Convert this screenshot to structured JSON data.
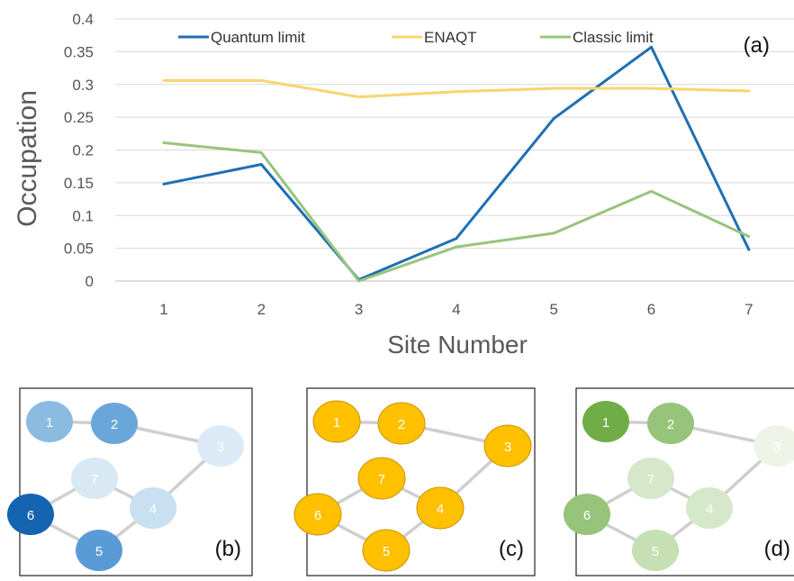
{
  "chart_data": {
    "type": "line",
    "ylabel": "Occupation",
    "xlabel": "Site Number",
    "panel_label": "(a)",
    "categories": [
      "1",
      "2",
      "3",
      "4",
      "5",
      "6",
      "7"
    ],
    "ylim": [
      0,
      0.4
    ],
    "yticks": [
      "0",
      "0.05",
      "0.1",
      "0.15",
      "0.2",
      "0.25",
      "0.3",
      "0.35",
      "0.4"
    ],
    "grid": "horizontal",
    "legend_position": "top",
    "series": [
      {
        "name": "Quantum limit",
        "color": "#1f6fb4",
        "values": [
          0.148,
          0.178,
          0.002,
          0.065,
          0.248,
          0.357,
          0.048
        ]
      },
      {
        "name": "ENAQT",
        "color": "#f9d56e",
        "values": [
          0.306,
          0.306,
          0.281,
          0.289,
          0.294,
          0.294,
          0.29
        ]
      },
      {
        "name": "Classic limit",
        "color": "#99c47c",
        "values": [
          0.211,
          0.196,
          0.0,
          0.052,
          0.073,
          0.137,
          0.068
        ]
      }
    ]
  },
  "network_panels": [
    {
      "label": "(b)",
      "fills": [
        "#8cbbe2",
        "#6aa6da",
        "#dcebf7",
        "#c9dff2",
        "#5b9bd5",
        "#1564b2",
        "#d8e8f5"
      ],
      "edge_color": "#cfcfcf"
    },
    {
      "label": "(c)",
      "fills": [
        "#ffc000",
        "#ffc000",
        "#ffc000",
        "#ffc000",
        "#ffc000",
        "#ffc000",
        "#ffc000"
      ],
      "edge_color": "#cfcfcf"
    },
    {
      "label": "(d)",
      "fills": [
        "#70ad47",
        "#96c47a",
        "#eef5e8",
        "#d5e8c9",
        "#c6e0b4",
        "#96c47a",
        "#d5e8c9"
      ],
      "edge_color": "#cfcfcf"
    }
  ],
  "node_labels": [
    "1",
    "2",
    "3",
    "4",
    "5",
    "6",
    "7"
  ]
}
